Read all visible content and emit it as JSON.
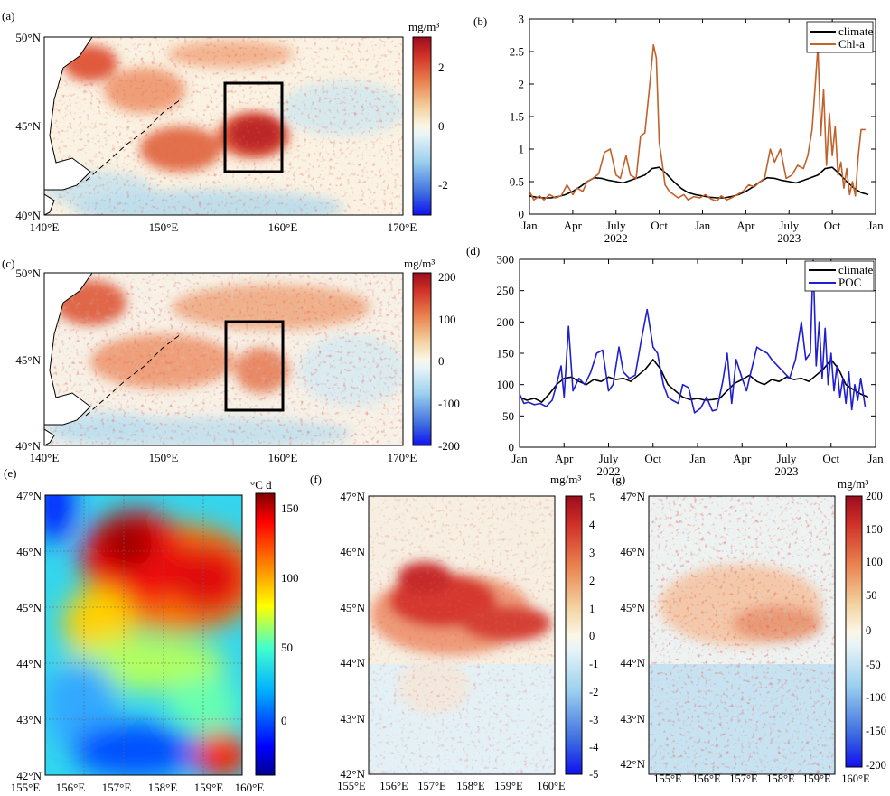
{
  "panels": {
    "a": {
      "label": "(a)",
      "unit": "mg/m³",
      "lat_ticks": [
        "50°N",
        "45°N",
        "40°N"
      ],
      "lon_ticks": [
        "140°E",
        "150°E",
        "160°E",
        "170°E"
      ],
      "cbar_ticks": [
        "2",
        "0",
        "-2"
      ]
    },
    "b": {
      "label": "(b)"
    },
    "c": {
      "label": "(c)",
      "unit": "mg/m³",
      "lat_ticks": [
        "50°N",
        "45°N",
        "40°N"
      ],
      "lon_ticks": [
        "140°E",
        "150°E",
        "160°E",
        "170°E"
      ],
      "cbar_ticks": [
        "200",
        "100",
        "0",
        "-100",
        "-200"
      ]
    },
    "d": {
      "label": "(d)"
    },
    "e": {
      "label": "(e)",
      "unit": "°C d",
      "lat_ticks": [
        "47°N",
        "46°N",
        "45°N",
        "44°N",
        "43°N",
        "42°N"
      ],
      "lon_ticks": [
        "155°E",
        "156°E",
        "157°E",
        "158°E",
        "159°E",
        "160°E"
      ],
      "cbar_ticks": [
        "150",
        "100",
        "50",
        "0"
      ]
    },
    "f": {
      "label": "(f)",
      "unit": "mg/m³",
      "lat_ticks": [
        "47°N",
        "46°N",
        "45°N",
        "44°N",
        "43°N",
        "42°N"
      ],
      "lon_ticks": [
        "155°E",
        "156°E",
        "157°E",
        "158°E",
        "159°E",
        "160°E"
      ],
      "cbar_ticks": [
        "5",
        "4",
        "3",
        "2",
        "1",
        "0",
        "-1",
        "-2",
        "-3",
        "-4",
        "-5"
      ]
    },
    "g": {
      "label": "(g)",
      "unit": "mg/m³",
      "lat_ticks": [
        "47°N",
        "46°N",
        "45°N",
        "44°N",
        "43°N",
        "42°N"
      ],
      "lon_ticks": [
        "155°E",
        "156°E",
        "157°E",
        "158°E",
        "159°E",
        "160°E"
      ],
      "cbar_ticks": [
        "200",
        "150",
        "100",
        "50",
        "0",
        "-50",
        "-100",
        "-150",
        "-200"
      ]
    }
  },
  "colors": {
    "climate": "#000000",
    "chl": "#c0622b",
    "poc": "#1f1fd0"
  },
  "chart_data": [
    {
      "type": "line",
      "panel": "b",
      "xtick_labels": [
        "Jan",
        "Apr",
        "July",
        "Oct",
        "Jan",
        "Apr",
        "July",
        "Oct",
        "Jan"
      ],
      "year_labels": [
        "2022",
        "2023"
      ],
      "ylim": [
        0,
        3
      ],
      "ytick_labels": [
        "0",
        "0.5",
        "1",
        "1.5",
        "2",
        "2.5",
        "3"
      ],
      "legend": "top-right",
      "series": [
        {
          "name": "climate",
          "color": "#000000",
          "x": [
            0,
            0.5,
            1,
            1.5,
            2,
            2.5,
            3,
            3.5,
            4,
            4.5,
            5,
            5.5,
            6,
            6.5,
            7,
            7.5,
            8,
            8.5,
            9,
            9.5,
            10,
            10.5,
            11,
            11.5,
            12,
            12.5,
            13,
            13.5,
            14,
            14.5,
            15,
            15.5,
            16,
            16.5,
            17,
            17.5,
            18,
            18.5,
            19,
            19.5,
            20,
            20.5,
            21,
            21.5,
            22,
            22.5,
            23,
            23.5
          ],
          "y": [
            0.28,
            0.26,
            0.25,
            0.25,
            0.27,
            0.3,
            0.35,
            0.42,
            0.5,
            0.56,
            0.55,
            0.52,
            0.5,
            0.48,
            0.52,
            0.56,
            0.6,
            0.7,
            0.72,
            0.62,
            0.5,
            0.4,
            0.33,
            0.3,
            0.28,
            0.26,
            0.25,
            0.25,
            0.27,
            0.3,
            0.35,
            0.42,
            0.5,
            0.56,
            0.55,
            0.52,
            0.5,
            0.48,
            0.52,
            0.56,
            0.6,
            0.7,
            0.72,
            0.62,
            0.5,
            0.4,
            0.33,
            0.3
          ]
        },
        {
          "name": "Chl-a",
          "color": "#c0622b",
          "x": [
            0,
            0.3,
            0.7,
            1,
            1.4,
            1.8,
            2.2,
            2.6,
            3,
            3.3,
            3.7,
            4,
            4.4,
            4.8,
            5.2,
            5.6,
            6,
            6.3,
            6.7,
            7,
            7.4,
            7.7,
            8,
            8.3,
            8.6,
            8.8,
            9,
            9.2,
            9.4,
            9.7,
            10,
            10.3,
            10.7,
            11,
            11.4,
            11.8,
            12.2,
            12.6,
            13,
            13.3,
            13.7,
            14,
            14.4,
            14.8,
            15.2,
            15.6,
            16,
            16.3,
            16.7,
            17,
            17.4,
            17.8,
            18.2,
            18.6,
            19,
            19.3,
            19.6,
            20,
            20.2,
            20.4,
            20.6,
            20.8,
            21,
            21.2,
            21.4,
            21.6,
            21.8,
            22,
            22.2,
            22.4,
            22.6,
            22.8,
            23,
            23.3
          ],
          "y": [
            0.35,
            0.22,
            0.28,
            0.22,
            0.3,
            0.25,
            0.28,
            0.45,
            0.3,
            0.4,
            0.35,
            0.5,
            0.55,
            0.62,
            0.95,
            1.0,
            0.6,
            0.55,
            0.9,
            0.6,
            0.55,
            1.2,
            1.25,
            1.9,
            2.6,
            2.4,
            1.1,
            0.8,
            0.45,
            0.35,
            0.3,
            0.25,
            0.3,
            0.22,
            0.27,
            0.25,
            0.3,
            0.23,
            0.2,
            0.28,
            0.22,
            0.25,
            0.3,
            0.35,
            0.45,
            0.42,
            0.5,
            0.55,
            1.0,
            0.8,
            1.0,
            0.55,
            0.6,
            0.75,
            0.7,
            0.9,
            1.3,
            2.58,
            1.2,
            1.92,
            0.75,
            1.55,
            0.9,
            1.35,
            0.6,
            0.8,
            0.4,
            0.7,
            0.3,
            0.5,
            0.28,
            0.9,
            1.3,
            1.3
          ]
        }
      ]
    },
    {
      "type": "line",
      "panel": "d",
      "xtick_labels": [
        "Jan",
        "Apr",
        "July",
        "Oct",
        "Jan",
        "Apr",
        "July",
        "Oct",
        "Jan"
      ],
      "year_labels": [
        "2022",
        "2023"
      ],
      "ylim": [
        0,
        300
      ],
      "ytick_labels": [
        "0",
        "50",
        "100",
        "150",
        "200",
        "250",
        "300"
      ],
      "legend": "top-right",
      "series": [
        {
          "name": "climate",
          "color": "#000000",
          "x": [
            0,
            0.5,
            1,
            1.5,
            2,
            2.5,
            3,
            3.5,
            4,
            4.5,
            5,
            5.5,
            6,
            6.5,
            7,
            7.5,
            8,
            8.5,
            9,
            9.5,
            10,
            10.5,
            11,
            11.5,
            12,
            12.5,
            13,
            13.5,
            14,
            14.5,
            15,
            15.5,
            16,
            16.5,
            17,
            17.5,
            18,
            18.5,
            19,
            19.5,
            20,
            20.5,
            21,
            21.5,
            22,
            22.5,
            23,
            23.5
          ],
          "y": [
            80,
            75,
            78,
            72,
            85,
            100,
            110,
            112,
            105,
            100,
            108,
            105,
            112,
            108,
            110,
            105,
            115,
            125,
            140,
            125,
            100,
            90,
            80,
            76,
            78,
            75,
            76,
            78,
            90,
            102,
            108,
            115,
            105,
            100,
            108,
            105,
            112,
            108,
            110,
            105,
            115,
            125,
            140,
            125,
            100,
            92,
            85,
            80
          ]
        },
        {
          "name": "POC",
          "color": "#1f1fd0",
          "x": [
            0,
            0.3,
            0.6,
            1,
            1.4,
            1.8,
            2.2,
            2.5,
            2.8,
            3,
            3.3,
            3.6,
            4,
            4.4,
            4.8,
            5.2,
            5.6,
            6,
            6.3,
            6.7,
            7,
            7.4,
            7.8,
            8.2,
            8.6,
            9,
            9.3,
            9.7,
            10,
            10.3,
            10.7,
            11,
            11.4,
            11.8,
            12.2,
            12.6,
            13,
            13.3,
            13.7,
            14,
            14.3,
            14.6,
            15,
            15.3,
            15.6,
            16,
            16.3,
            16.7,
            17,
            17.4,
            17.8,
            18.2,
            18.6,
            19,
            19.3,
            19.6,
            19.8,
            20,
            20.2,
            20.4,
            20.6,
            20.8,
            21,
            21.2,
            21.4,
            21.6,
            21.8,
            22,
            22.2,
            22.4,
            22.6,
            22.8,
            23,
            23.3
          ],
          "y": [
            85,
            70,
            72,
            68,
            70,
            65,
            75,
            100,
            130,
            80,
            193,
            90,
            110,
            100,
            120,
            150,
            155,
            90,
            100,
            160,
            120,
            110,
            115,
            170,
            220,
            160,
            150,
            100,
            80,
            75,
            70,
            100,
            95,
            55,
            62,
            80,
            58,
            60,
            105,
            150,
            70,
            140,
            110,
            90,
            120,
            160,
            155,
            150,
            140,
            130,
            120,
            110,
            140,
            200,
            140,
            150,
            298,
            130,
            200,
            110,
            190,
            100,
            150,
            90,
            130,
            80,
            110,
            70,
            120,
            60,
            100,
            75,
            110,
            65
          ]
        }
      ]
    }
  ]
}
